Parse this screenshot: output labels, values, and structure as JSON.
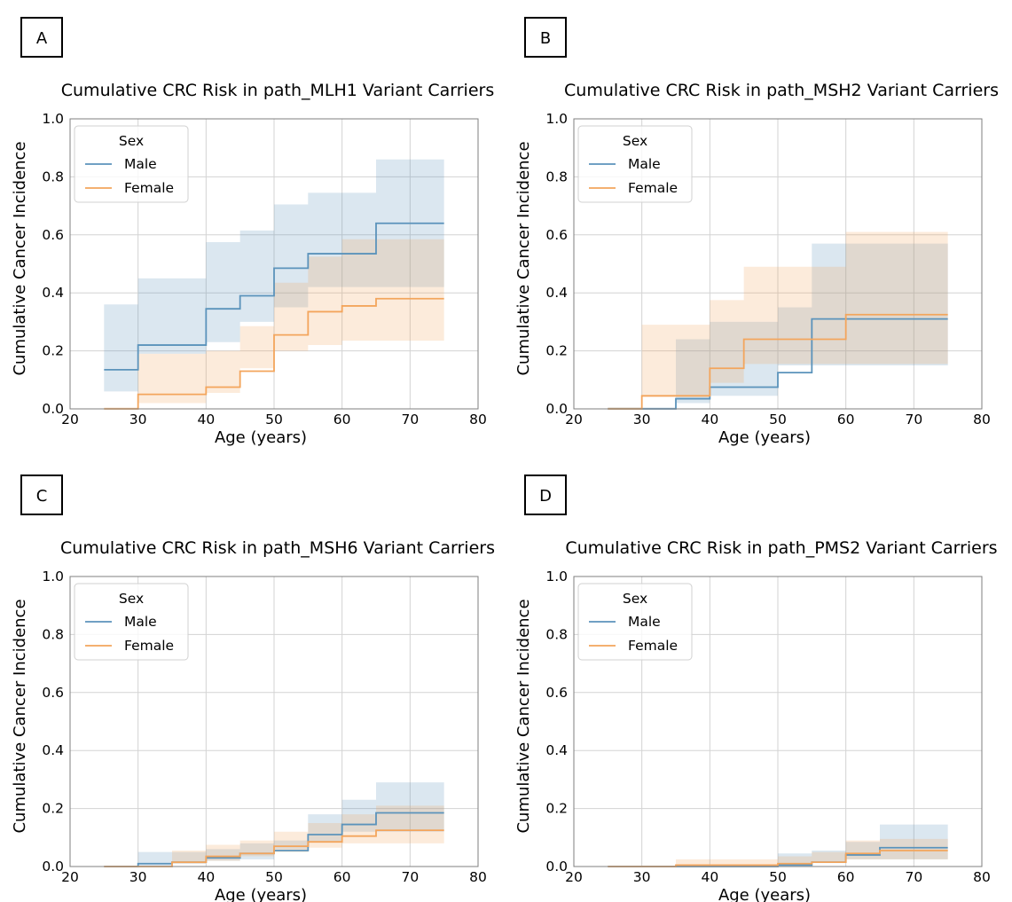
{
  "colors": {
    "male": "#5b93bb",
    "female": "#f3a55c"
  },
  "chart_data": [
    {
      "panel_letter": "A",
      "type": "line",
      "title": "Cumulative CRC Risk in path_MLH1 Variant Carriers",
      "xlabel": "Age (years)",
      "ylabel": "Cumulative Cancer Incidence",
      "xlim": [
        20,
        80
      ],
      "ylim": [
        0,
        1.0
      ],
      "xticks": [
        "20",
        "30",
        "40",
        "50",
        "60",
        "70",
        "80"
      ],
      "yticks": [
        "0.0",
        "0.2",
        "0.4",
        "0.6",
        "0.8",
        "1.0"
      ],
      "grid": true,
      "legend": {
        "title": "Sex",
        "position": "top-left"
      },
      "series": [
        {
          "name": "Male",
          "step": true,
          "x": [
            25,
            30,
            40,
            45,
            50,
            55,
            65,
            75
          ],
          "values": [
            0.135,
            0.22,
            0.345,
            0.39,
            0.485,
            0.535,
            0.64,
            0.64
          ],
          "lower": [
            0.05,
            0.06,
            0.19,
            0.23,
            0.3,
            0.35,
            0.42,
            0.42
          ],
          "upper": [
            0.36,
            0.45,
            0.575,
            0.615,
            0.705,
            0.745,
            0.86,
            0.86
          ]
        },
        {
          "name": "Female",
          "step": true,
          "x": [
            25,
            30,
            40,
            45,
            50,
            55,
            60,
            65,
            75
          ],
          "values": [
            0.0,
            0.05,
            0.075,
            0.13,
            0.255,
            0.335,
            0.355,
            0.38,
            0.38
          ],
          "lower": [
            0.0,
            0.005,
            0.02,
            0.055,
            0.14,
            0.2,
            0.22,
            0.235,
            0.235
          ],
          "upper": [
            0.0,
            0.19,
            0.2,
            0.285,
            0.435,
            0.525,
            0.585,
            0.585,
            0.585
          ]
        }
      ]
    },
    {
      "panel_letter": "B",
      "type": "line",
      "title": "Cumulative CRC Risk in path_MSH2 Variant Carriers",
      "xlabel": "Age (years)",
      "ylabel": "Cumulative Cancer Incidence",
      "xlim": [
        20,
        80
      ],
      "ylim": [
        0,
        1.0
      ],
      "xticks": [
        "20",
        "30",
        "40",
        "50",
        "60",
        "70",
        "80"
      ],
      "yticks": [
        "0.0",
        "0.2",
        "0.4",
        "0.6",
        "0.8",
        "1.0"
      ],
      "grid": true,
      "legend": {
        "title": "Sex",
        "position": "top-left"
      },
      "series": [
        {
          "name": "Male",
          "step": true,
          "x": [
            25,
            35,
            40,
            50,
            55,
            75
          ],
          "values": [
            0.0,
            0.035,
            0.075,
            0.125,
            0.31,
            0.31
          ],
          "lower": [
            0.0,
            0.005,
            0.02,
            0.045,
            0.15,
            0.15
          ],
          "upper": [
            0.0,
            0.24,
            0.3,
            0.35,
            0.57,
            0.57
          ]
        },
        {
          "name": "Female",
          "step": true,
          "x": [
            25,
            30,
            40,
            45,
            60,
            75
          ],
          "values": [
            0.0,
            0.045,
            0.14,
            0.24,
            0.325,
            0.325
          ],
          "lower": [
            0.0,
            0.005,
            0.04,
            0.09,
            0.155,
            0.155
          ],
          "upper": [
            0.0,
            0.29,
            0.375,
            0.49,
            0.61,
            0.61
          ]
        }
      ]
    },
    {
      "panel_letter": "C",
      "type": "line",
      "title": "Cumulative CRC Risk in path_MSH6 Variant Carriers",
      "xlabel": "Age (years)",
      "ylabel": "Cumulative Cancer Incidence",
      "xlim": [
        20,
        80
      ],
      "ylim": [
        0,
        1.0
      ],
      "xticks": [
        "20",
        "30",
        "40",
        "50",
        "60",
        "70",
        "80"
      ],
      "yticks": [
        "0.0",
        "0.2",
        "0.4",
        "0.6",
        "0.8",
        "1.0"
      ],
      "grid": true,
      "legend": {
        "title": "Sex",
        "position": "top-left"
      },
      "series": [
        {
          "name": "Male",
          "step": true,
          "x": [
            25,
            30,
            35,
            40,
            45,
            50,
            55,
            60,
            65,
            75
          ],
          "values": [
            0.0,
            0.01,
            0.015,
            0.03,
            0.045,
            0.055,
            0.11,
            0.145,
            0.185,
            0.185
          ],
          "lower": [
            0.0,
            0.0,
            0.0,
            0.01,
            0.02,
            0.025,
            0.06,
            0.085,
            0.12,
            0.12
          ],
          "upper": [
            0.0,
            0.05,
            0.05,
            0.06,
            0.08,
            0.09,
            0.18,
            0.23,
            0.29,
            0.29
          ]
        },
        {
          "name": "Female",
          "step": true,
          "x": [
            25,
            35,
            40,
            45,
            50,
            55,
            60,
            65,
            75
          ],
          "values": [
            0.0,
            0.015,
            0.035,
            0.045,
            0.07,
            0.085,
            0.105,
            0.125,
            0.125
          ],
          "lower": [
            0.0,
            0.0,
            0.01,
            0.02,
            0.035,
            0.05,
            0.065,
            0.08,
            0.08
          ],
          "upper": [
            0.0,
            0.055,
            0.075,
            0.09,
            0.12,
            0.15,
            0.18,
            0.21,
            0.21
          ]
        }
      ]
    },
    {
      "panel_letter": "D",
      "type": "line",
      "title": "Cumulative CRC Risk in path_PMS2 Variant Carriers",
      "xlabel": "Age (years)",
      "ylabel": "Cumulative Cancer Incidence",
      "xlim": [
        20,
        80
      ],
      "ylim": [
        0,
        1.0
      ],
      "xticks": [
        "20",
        "30",
        "40",
        "50",
        "60",
        "70",
        "80"
      ],
      "yticks": [
        "0.0",
        "0.2",
        "0.4",
        "0.6",
        "0.8",
        "1.0"
      ],
      "grid": true,
      "legend": {
        "title": "Sex",
        "position": "top-left"
      },
      "series": [
        {
          "name": "Male",
          "step": true,
          "x": [
            25,
            50,
            55,
            60,
            65,
            75
          ],
          "values": [
            0.0,
            0.005,
            0.015,
            0.04,
            0.065,
            0.065
          ],
          "lower": [
            0.0,
            0.0,
            0.002,
            0.012,
            0.025,
            0.025
          ],
          "upper": [
            0.0,
            0.045,
            0.055,
            0.085,
            0.145,
            0.145
          ]
        },
        {
          "name": "Female",
          "step": true,
          "x": [
            25,
            35,
            50,
            55,
            60,
            65,
            75
          ],
          "values": [
            0.0,
            0.005,
            0.01,
            0.015,
            0.045,
            0.055,
            0.055
          ],
          "lower": [
            0.0,
            0.0,
            0.002,
            0.004,
            0.018,
            0.025,
            0.025
          ],
          "upper": [
            0.0,
            0.025,
            0.035,
            0.05,
            0.09,
            0.095,
            0.095
          ]
        }
      ]
    }
  ]
}
